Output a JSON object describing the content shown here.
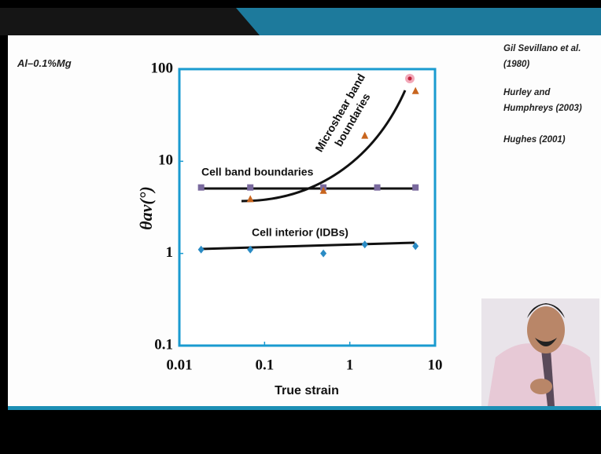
{
  "chart_data": {
    "type": "scatter",
    "title": "Al–0.1%Mg",
    "xlabel": "True strain",
    "ylabel": "θav(°)",
    "xscale": "log",
    "yscale": "log",
    "xlim": [
      0.01,
      10
    ],
    "xticks": [
      0.01,
      0.1,
      1,
      10
    ],
    "ylim": [
      0.1,
      100
    ],
    "yticks": [
      0.1,
      1,
      10,
      100
    ],
    "references": [
      "Gil Sevillano et al. (1980)",
      "Hurley and Humphreys (2003)",
      "Hughes (2001)"
    ],
    "series": [
      {
        "name": "Cell band boundaries",
        "color": "#7a6a9e",
        "marker": "square",
        "x": [
          0.018,
          0.068,
          0.49,
          2.1,
          5.9
        ],
        "values": [
          5.2,
          5.2,
          5.2,
          5.2,
          5.2
        ]
      },
      {
        "name": "Cell interior (IDBs)",
        "color": "#2a8bc4",
        "marker": "diamond",
        "x": [
          0.018,
          0.068,
          0.49,
          1.5,
          5.9
        ],
        "values": [
          1.1,
          1.1,
          1.0,
          1.25,
          1.2
        ]
      },
      {
        "name": "Microshear band boundaries",
        "color": "#c8651e",
        "marker": "triangle",
        "x": [
          0.068,
          0.49,
          1.5,
          5.9
        ],
        "values": [
          3.9,
          4.8,
          19,
          58
        ]
      }
    ]
  }
}
